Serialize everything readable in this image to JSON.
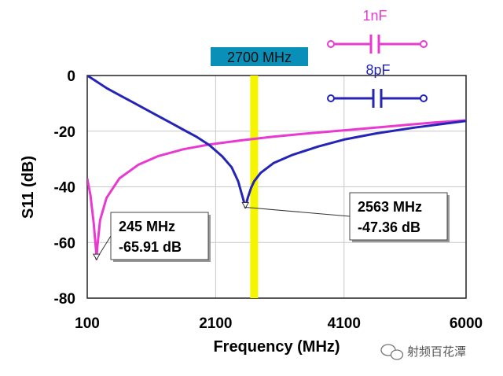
{
  "chart_data": {
    "type": "line",
    "xlabel": "Frequency (MHz)",
    "ylabel": "S11 (dB)",
    "xlim": [
      100,
      6000
    ],
    "ylim": [
      -80,
      0
    ],
    "x_ticks": [
      "100",
      "2100",
      "4100",
      "6000"
    ],
    "y_ticks": [
      "0",
      "-20",
      "-40",
      "-60",
      "-80"
    ],
    "grid": true,
    "legend_position": "top-right",
    "marker_line": {
      "x": 2700,
      "label": "2700 MHz",
      "color": "#f5f500",
      "label_bg": "#0a8fb8"
    },
    "series": [
      {
        "name": "1nF",
        "color": "#e83ad0",
        "x": [
          100,
          150,
          200,
          240,
          245,
          255,
          300,
          400,
          600,
          900,
          1200,
          1600,
          2000,
          2500,
          3000,
          3500,
          4000,
          4500,
          5000,
          5500,
          6000
        ],
        "y": [
          -37,
          -43,
          -53,
          -63.5,
          -65.91,
          -62,
          -52,
          -44,
          -37,
          -32,
          -29,
          -26.5,
          -24.8,
          -23.3,
          -22,
          -20.9,
          -19.9,
          -18.9,
          -17.9,
          -16.9,
          -16.1
        ]
      },
      {
        "name": "8pF",
        "color": "#2424b8",
        "x": [
          100,
          200,
          400,
          600,
          800,
          1000,
          1200,
          1400,
          1600,
          1800,
          2000,
          2200,
          2350,
          2450,
          2530,
          2563,
          2600,
          2650,
          2700,
          2800,
          3000,
          3300,
          3700,
          4100,
          4600,
          5200,
          6000
        ],
        "y": [
          0,
          -1.5,
          -4.5,
          -7,
          -9.5,
          -12,
          -14.5,
          -17,
          -19.5,
          -22,
          -25,
          -29,
          -33,
          -38,
          -44.5,
          -47.36,
          -44,
          -40.5,
          -38,
          -35,
          -31.5,
          -28.5,
          -25.5,
          -23,
          -20.8,
          -18.7,
          -16.3
        ]
      }
    ],
    "annotations": [
      {
        "series": "1nF",
        "x": 245,
        "y": -65.91,
        "lines": [
          "245 MHz",
          "-65.91 dB"
        ]
      },
      {
        "series": "8pF",
        "x": 2563,
        "y": -47.36,
        "lines": [
          "2563 MHz",
          "-47.36 dB"
        ]
      }
    ]
  },
  "watermark": {
    "text": "射频百花潭",
    "icon": "wechat-icon"
  }
}
